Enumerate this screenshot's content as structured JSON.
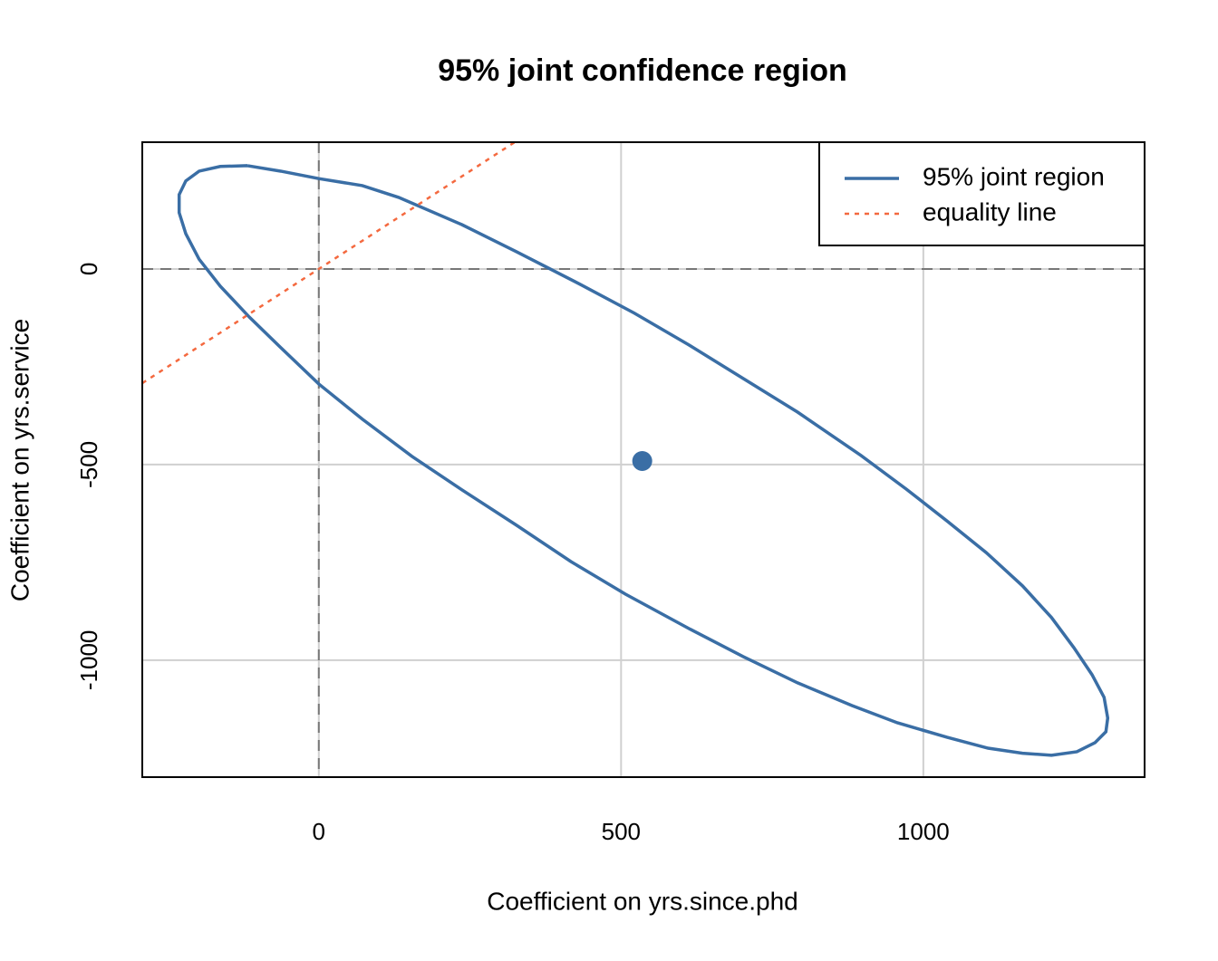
{
  "chart_data": {
    "type": "line",
    "title": "95% joint confidence region",
    "xlabel": "Coefficient on yrs.since.phd",
    "ylabel": "Coefficient on yrs.service",
    "xlim": [
      -292,
      1366
    ],
    "ylim": [
      -1299,
      324
    ],
    "xticks": [
      0,
      500,
      1000
    ],
    "yticks": [
      -1000,
      -500,
      0
    ],
    "grid": true,
    "legend": "topright",
    "hline": 0,
    "vline": 0,
    "series": [
      {
        "name": "95% joint region",
        "color": "#3a6ea5",
        "x": [
          -118,
          -163,
          -198,
          -220,
          -231,
          -231,
          -220,
          -198,
          -163,
          -115,
          -63,
          0,
          72,
          154,
          237,
          327,
          417,
          507,
          612,
          702,
          792,
          882,
          957,
          1039,
          1107,
          1164,
          1212,
          1254,
          1284,
          1302,
          1305,
          1299,
          1279,
          1249,
          1212,
          1164,
          1104,
          1039,
          972,
          897,
          792,
          702,
          612,
          522,
          432,
          327,
          237,
          132,
          72,
          0,
          -63,
          -118
        ],
        "values": [
          264,
          262,
          250,
          225,
          190,
          144,
          90,
          25,
          -44,
          -123,
          -201,
          -294,
          -384,
          -479,
          -565,
          -655,
          -748,
          -831,
          -919,
          -991,
          -1058,
          -1116,
          -1160,
          -1197,
          -1225,
          -1238,
          -1243,
          -1234,
          -1211,
          -1183,
          -1148,
          -1095,
          -1037,
          -968,
          -891,
          -810,
          -725,
          -644,
          -563,
          -477,
          -366,
          -280,
          -194,
          -113,
          -39,
          44,
          113,
          183,
          213,
          231,
          250,
          264
        ]
      },
      {
        "name": "equality line",
        "color": "#f4693f",
        "style": "dotted",
        "slope": 1,
        "intercept": 0
      }
    ],
    "point": {
      "x": 535,
      "y": -491,
      "color": "#3a6ea5"
    }
  }
}
